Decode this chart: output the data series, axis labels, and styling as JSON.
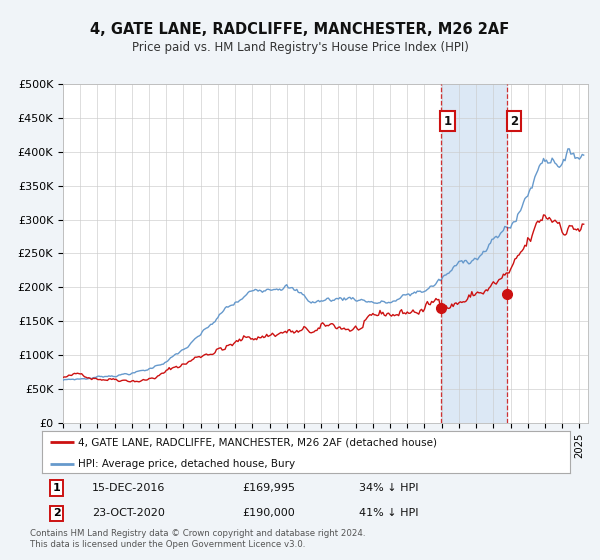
{
  "title": "4, GATE LANE, RADCLIFFE, MANCHESTER, M26 2AF",
  "subtitle": "Price paid vs. HM Land Registry's House Price Index (HPI)",
  "ylim": [
    0,
    500000
  ],
  "xlim_start": 1995.0,
  "xlim_end": 2025.5,
  "hpi_color": "#6699cc",
  "price_color": "#cc1111",
  "marker1_date": 2016.96,
  "marker1_price": 169995,
  "marker2_date": 2020.81,
  "marker2_price": 190000,
  "marker1_label": "15-DEC-2016",
  "marker1_value": "£169,995",
  "marker1_pct": "34% ↓ HPI",
  "marker2_label": "23-OCT-2020",
  "marker2_value": "£190,000",
  "marker2_pct": "41% ↓ HPI",
  "legend_line1": "4, GATE LANE, RADCLIFFE, MANCHESTER, M26 2AF (detached house)",
  "legend_line2": "HPI: Average price, detached house, Bury",
  "footnote1": "Contains HM Land Registry data © Crown copyright and database right 2024.",
  "footnote2": "This data is licensed under the Open Government Licence v3.0.",
  "bg_color": "#f0f4f8",
  "plot_bg": "#ffffff",
  "shade_color": "#dce8f5"
}
